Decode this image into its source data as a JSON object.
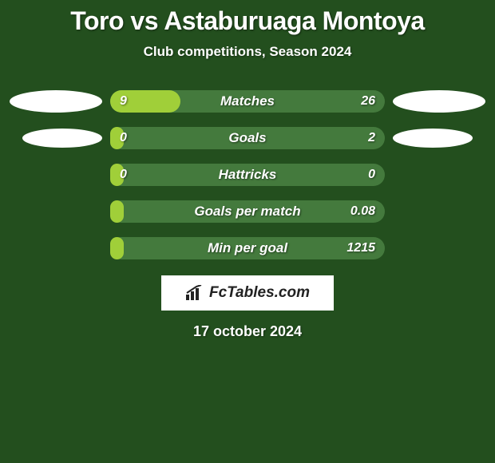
{
  "header": {
    "title": "Toro vs Astaburuaga Montoya",
    "subtitle": "Club competitions, Season 2024"
  },
  "colors": {
    "background": "#234f1e",
    "bar_bg": "#447a3d",
    "bar_fill": "#a0cf39",
    "ellipse": "#ffffff",
    "text": "#ffffff"
  },
  "rows": [
    {
      "label": "Matches",
      "left_value": "9",
      "right_value": "26",
      "fill_percent": 25.7,
      "show_ellipse": true,
      "ellipse_small": false
    },
    {
      "label": "Goals",
      "left_value": "0",
      "right_value": "2",
      "fill_percent": 5,
      "show_ellipse": true,
      "ellipse_small": true
    },
    {
      "label": "Hattricks",
      "left_value": "0",
      "right_value": "0",
      "fill_percent": 5,
      "show_ellipse": false,
      "ellipse_small": false
    },
    {
      "label": "Goals per match",
      "left_value": "",
      "right_value": "0.08",
      "fill_percent": 5,
      "show_ellipse": false,
      "ellipse_small": false
    },
    {
      "label": "Min per goal",
      "left_value": "",
      "right_value": "1215",
      "fill_percent": 5,
      "show_ellipse": false,
      "ellipse_small": false
    }
  ],
  "branding": {
    "text": "FcTables.com"
  },
  "footer": {
    "date": "17 october 2024"
  }
}
